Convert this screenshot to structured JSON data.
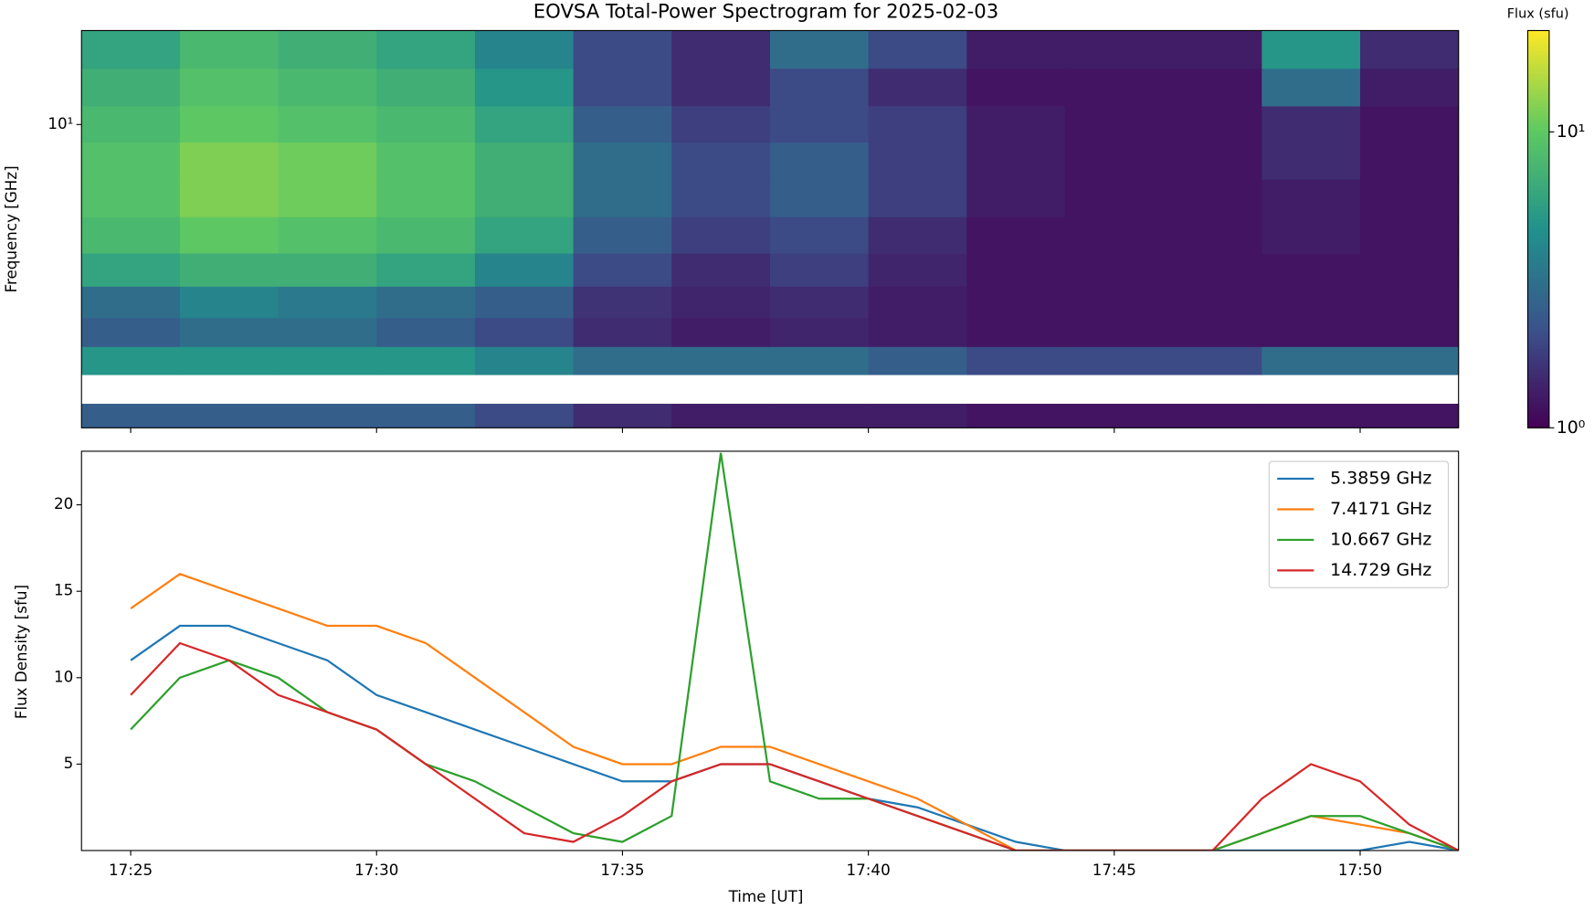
{
  "chart_data": [
    {
      "type": "heatmap",
      "title": "EOVSA Total-Power Spectrogram for 2025-02-03",
      "y_label": "Frequency [GHz]",
      "x": [
        "17:24",
        "17:26",
        "17:28",
        "17:30",
        "17:32",
        "17:34",
        "17:36",
        "17:38",
        "17:40",
        "17:42",
        "17:44",
        "17:46",
        "17:48",
        "17:50"
      ],
      "y": [
        1.6,
        1.9,
        2.3,
        2.7,
        3.3,
        4.0,
        5.0,
        6.3,
        8.0,
        10,
        12.6,
        16
      ],
      "z": [
        [
          2.5,
          2.5,
          2.5,
          2.5,
          2,
          1.5,
          1.3,
          1.3,
          1.3,
          1.2,
          1.2,
          1.2,
          1.2,
          1.2
        ],
        [
          null,
          null,
          null,
          null,
          null,
          null,
          null,
          null,
          null,
          null,
          null,
          null,
          null,
          null
        ],
        [
          5,
          5,
          5,
          5,
          4,
          3,
          3,
          3,
          2.5,
          2,
          2,
          2,
          3,
          3
        ],
        [
          2.5,
          3,
          3,
          2.5,
          2,
          1.5,
          1.3,
          1.4,
          1.3,
          1.2,
          1.2,
          1.2,
          1.2,
          1.2
        ],
        [
          3,
          4,
          3.5,
          3,
          2.5,
          1.6,
          1.4,
          1.5,
          1.3,
          1.2,
          1.2,
          1.2,
          1.2,
          1.2
        ],
        [
          6,
          7,
          7,
          6,
          4,
          2,
          1.5,
          1.8,
          1.4,
          1.2,
          1.2,
          1.2,
          1.2,
          1.2
        ],
        [
          8,
          10,
          9,
          8,
          6,
          2.5,
          1.8,
          2,
          1.5,
          1.2,
          1.2,
          1.2,
          1.3,
          1.2
        ],
        [
          9,
          12,
          11,
          9,
          7,
          3,
          2,
          2.5,
          1.8,
          1.3,
          1.2,
          1.2,
          1.3,
          1.2
        ],
        [
          9,
          12,
          11,
          9,
          7,
          3,
          2,
          2.5,
          1.8,
          1.3,
          1.2,
          1.2,
          1.5,
          1.2
        ],
        [
          8,
          10,
          9,
          8,
          6,
          2.5,
          1.8,
          2,
          1.8,
          1.3,
          1.2,
          1.2,
          1.5,
          1.2
        ],
        [
          7,
          9,
          8,
          7,
          5,
          2,
          1.5,
          2,
          1.5,
          1.2,
          1.2,
          1.2,
          3,
          1.3
        ],
        [
          6,
          8,
          7,
          6,
          4,
          2,
          1.5,
          3,
          2,
          1.3,
          1.3,
          1.3,
          5,
          1.5
        ]
      ],
      "xlim": [
        "17:24",
        "17:52"
      ],
      "ylim": [
        1.5,
        18
      ],
      "log_y": true,
      "yticks": [
        {
          "value": 10,
          "label": "10¹"
        }
      ],
      "colormap": "viridis",
      "log_color": true,
      "colorbar_label": "Flux (sfu)",
      "clim": [
        1,
        22
      ],
      "cticks": [
        {
          "value": 1,
          "label": "10⁰"
        },
        {
          "value": 10,
          "label": "10¹"
        }
      ]
    },
    {
      "type": "line",
      "x_label": "Time [UT]",
      "y_label": "Flux Density [sfu]",
      "x": [
        "17:25",
        "17:26",
        "17:27",
        "17:28",
        "17:29",
        "17:30",
        "17:31",
        "17:32",
        "17:33",
        "17:34",
        "17:35",
        "17:36",
        "17:37",
        "17:38",
        "17:39",
        "17:40",
        "17:41",
        "17:42",
        "17:43",
        "17:44",
        "17:45",
        "17:46",
        "17:47",
        "17:48",
        "17:49",
        "17:50",
        "17:51",
        "17:52"
      ],
      "series": [
        {
          "name": "5.3859 GHz",
          "color": "#1f77b4",
          "values": [
            11,
            13,
            13,
            12,
            11,
            9,
            8,
            7,
            6,
            5,
            4,
            4,
            5,
            5,
            4,
            3,
            2.5,
            1.5,
            0.5,
            0,
            0,
            0,
            0,
            0,
            0,
            0,
            0.5,
            0
          ]
        },
        {
          "name": "7.4171 GHz",
          "color": "#ff7f0e",
          "values": [
            14,
            16,
            15,
            14,
            13,
            13,
            12,
            10,
            8,
            6,
            5,
            5,
            6,
            6,
            5,
            4,
            3,
            1.5,
            0,
            0,
            0,
            0,
            0,
            1,
            2,
            1.5,
            1,
            0
          ]
        },
        {
          "name": "10.667 GHz",
          "color": "#2ca02c",
          "values": [
            7,
            10,
            11,
            10,
            8,
            7,
            5,
            4,
            2.5,
            1,
            0.5,
            2,
            23,
            4,
            3,
            3,
            2,
            1,
            0,
            0,
            0,
            0,
            0,
            1,
            2,
            2,
            1,
            0
          ]
        },
        {
          "name": "14.729 GHz",
          "color": "#d62728",
          "values": [
            9,
            12,
            11,
            9,
            8,
            7,
            5,
            3,
            1,
            0.5,
            2,
            4,
            5,
            5,
            4,
            3,
            2,
            1,
            0,
            0,
            0,
            0,
            0,
            3,
            5,
            4,
            1.5,
            0
          ]
        }
      ],
      "xlim": [
        "17:24",
        "17:52"
      ],
      "xticks": [
        "17:25",
        "17:30",
        "17:35",
        "17:40",
        "17:45",
        "17:50"
      ],
      "ylim": [
        0,
        23.1
      ],
      "yticks": [
        5,
        10,
        15,
        20
      ],
      "legend": "upper right"
    }
  ]
}
